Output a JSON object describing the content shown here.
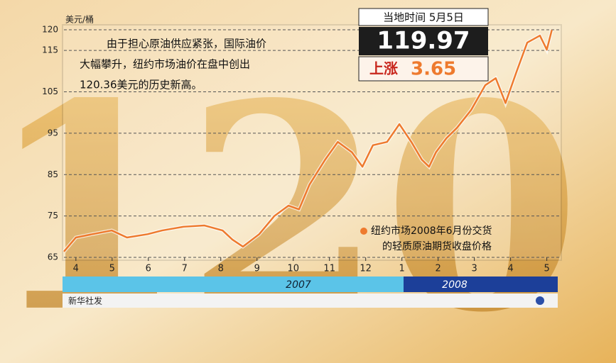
{
  "chart_data": {
    "type": "line",
    "background_text": "120",
    "y_label": "美元/桶",
    "annotation": [
      "由于担心原油供应紧张，国际油价",
      "大幅攀升，纽约市场油价在盘中创出",
      "120.36美元的历史新高。"
    ],
    "info_box": {
      "date": "当地时间 5月5日",
      "price": "119.97",
      "change_label": "上涨",
      "change": "3.65"
    },
    "x": [
      -0.33,
      0,
      0.45,
      0.99,
      1.41,
      1.98,
      2.38,
      2.97,
      3.55,
      4.05,
      4.32,
      4.61,
      5.06,
      5.48,
      5.87,
      6.16,
      6.45,
      6.88,
      7.23,
      7.62,
      7.91,
      8.2,
      8.59,
      8.93,
      9.26,
      9.55,
      9.75,
      9.94,
      10.23,
      10.52,
      10.91,
      11.3,
      11.59,
      11.86,
      12.17,
      12.46,
      12.81,
      13.0,
      13.14
    ],
    "series": [
      {
        "name": [
          "纽约市场2008年6月份交货",
          "的轻质原油期货收盘价格"
        ],
        "color": "#ee7a2e",
        "values": [
          66.4,
          69.8,
          70.6,
          71.5,
          69.8,
          70.6,
          71.5,
          72.4,
          72.7,
          71.5,
          69.3,
          67.6,
          70.6,
          75,
          77.5,
          76.6,
          82.6,
          88.6,
          92.9,
          90.4,
          86.9,
          92.1,
          92.9,
          97.2,
          92.9,
          88.6,
          86.9,
          90.4,
          93.8,
          96.3,
          100.6,
          106.6,
          108.3,
          102.3,
          110,
          116.9,
          118.6,
          115.2,
          119.97
        ]
      }
    ],
    "xlim": [
      -0.33,
      13.4
    ],
    "xticks": [
      {
        "value": 0,
        "label": "4"
      },
      {
        "value": 1,
        "label": "5"
      },
      {
        "value": 2,
        "label": "6"
      },
      {
        "value": 3,
        "label": "7"
      },
      {
        "value": 4,
        "label": "8"
      },
      {
        "value": 5,
        "label": "9"
      },
      {
        "value": 6,
        "label": "10"
      },
      {
        "value": 7,
        "label": "11"
      },
      {
        "value": 8,
        "label": "12"
      },
      {
        "value": 9,
        "label": "1"
      },
      {
        "value": 10,
        "label": "2"
      },
      {
        "value": 11,
        "label": "3"
      },
      {
        "value": 12,
        "label": "4"
      },
      {
        "value": 13,
        "label": "5"
      }
    ],
    "years": [
      "2007",
      "2008"
    ],
    "source": "新华社发",
    "ylim": [
      65,
      120
    ],
    "yticks": [
      65,
      75,
      85,
      95,
      105,
      115,
      120
    ],
    "grid": true
  }
}
